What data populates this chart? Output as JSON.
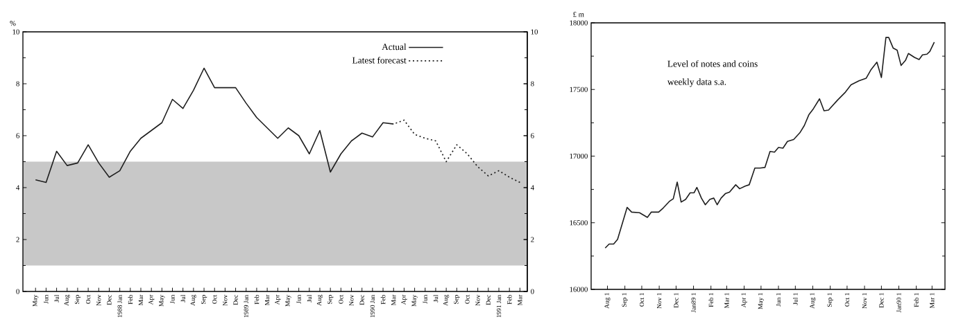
{
  "chart_data": [
    {
      "type": "line",
      "ylabel": "%",
      "categories": [
        "May",
        "Jun",
        "Jul",
        "Aug",
        "Sep",
        "Oct",
        "Nov",
        "Dec",
        "1988 Jan",
        "Feb",
        "Mar",
        "Apr",
        "May",
        "Jun",
        "Jul",
        "Aug",
        "Sep",
        "Oct",
        "Nov",
        "Dec",
        "1989 Jan",
        "Feb",
        "Mar",
        "Apr",
        "May",
        "Jun",
        "Jul",
        "Aug",
        "Sep",
        "Oct",
        "Nov",
        "Dec",
        "1990 Jan",
        "Feb",
        "Mar",
        "Apr",
        "May",
        "Jun",
        "Jul",
        "Aug",
        "Sep",
        "Oct",
        "Nov",
        "Dec",
        "1991 Jan",
        "Feb",
        "Mar"
      ],
      "series": [
        {
          "name": "Actual",
          "color": "#1e1e1e",
          "line_style": "solid",
          "values": [
            4.3,
            4.2,
            5.4,
            4.85,
            4.95,
            5.65,
            4.95,
            4.4,
            4.65,
            5.4,
            5.9,
            6.2,
            6.5,
            7.4,
            7.05,
            7.75,
            8.6,
            7.85,
            7.85,
            7.85,
            7.25,
            6.7,
            6.3,
            5.9,
            6.3,
            6.0,
            5.3,
            6.2,
            4.6,
            5.3,
            5.8,
            6.1,
            5.95,
            6.5,
            6.45,
            null,
            null,
            null,
            null,
            null,
            null,
            null,
            null,
            null,
            null,
            null,
            null
          ]
        },
        {
          "name": "Latest forecast",
          "color": "#1e1e1e",
          "line_style": "dotted",
          "values": [
            null,
            null,
            null,
            null,
            null,
            null,
            null,
            null,
            null,
            null,
            null,
            null,
            null,
            null,
            null,
            null,
            null,
            null,
            null,
            null,
            null,
            null,
            null,
            null,
            null,
            null,
            null,
            null,
            null,
            null,
            null,
            null,
            null,
            null,
            6.45,
            6.6,
            6.05,
            5.9,
            5.8,
            5.0,
            5.65,
            5.3,
            4.8,
            4.45,
            4.65,
            4.4,
            4.2
          ]
        }
      ],
      "ylim": [
        0,
        10
      ],
      "yticks": [
        0,
        2,
        4,
        6,
        8,
        10
      ],
      "y2lim": [
        0,
        10
      ],
      "y2ticks": [
        0,
        2,
        4,
        6,
        8,
        10
      ],
      "bands": [
        {
          "axis": "y",
          "from": 1,
          "to": 5,
          "color": "#c8c8c8"
        }
      ],
      "legend": "top right"
    },
    {
      "type": "line",
      "ylabel": "£ m",
      "x": [
        "1988-07-28",
        "1988-08-04",
        "1988-08-12",
        "1988-08-19",
        "1988-09-05",
        "1988-09-13",
        "1988-09-27",
        "1988-10-11",
        "1988-10-18",
        "1988-10-31",
        "1988-11-08",
        "1988-11-19",
        "1988-11-26",
        "1988-12-03",
        "1988-12-10",
        "1988-12-18",
        "1988-12-26",
        "1989-01-02",
        "1989-01-07",
        "1989-01-15",
        "1989-01-22",
        "1989-01-30",
        "1989-02-06",
        "1989-02-12",
        "1989-02-19",
        "1989-02-27",
        "1989-03-06",
        "1989-03-17",
        "1989-03-24",
        "1989-04-03",
        "1989-04-10",
        "1989-04-20",
        "1989-04-29",
        "1989-05-08",
        "1989-05-17",
        "1989-05-25",
        "1989-06-01",
        "1989-06-09",
        "1989-06-17",
        "1989-06-28",
        "1989-07-09",
        "1989-07-17",
        "1989-07-25",
        "1989-08-02",
        "1989-08-13",
        "1989-08-21",
        "1989-08-29",
        "1989-09-14",
        "1989-09-28",
        "1989-10-08",
        "1989-10-22",
        "1989-11-04",
        "1989-11-12",
        "1989-11-23",
        "1989-12-01",
        "1989-12-09",
        "1989-12-14",
        "1989-12-22",
        "1989-12-29",
        "1990-01-05",
        "1990-01-13",
        "1990-01-18",
        "1990-01-29",
        "1990-02-06",
        "1990-02-12",
        "1990-02-20",
        "1990-02-25",
        "1990-03-05"
      ],
      "values": [
        16310,
        16340,
        16340,
        16375,
        16615,
        16580,
        16575,
        16540,
        16580,
        16580,
        16610,
        16660,
        16680,
        16805,
        16655,
        16675,
        16725,
        16725,
        16765,
        16685,
        16635,
        16675,
        16685,
        16635,
        16685,
        16720,
        16730,
        16785,
        16755,
        16775,
        16785,
        16910,
        16910,
        16915,
        17035,
        17030,
        17065,
        17060,
        17110,
        17125,
        17175,
        17230,
        17310,
        17355,
        17430,
        17340,
        17345,
        17420,
        17480,
        17535,
        17565,
        17585,
        17645,
        17705,
        17590,
        17890,
        17890,
        17810,
        17795,
        17680,
        17720,
        17770,
        17740,
        17725,
        17760,
        17765,
        17785,
        17855
      ],
      "color": "#1e1e1e",
      "xlim": [
        "1988-07-03",
        "1990-03-24"
      ],
      "xticks": [
        {
          "value": "1988-08-01",
          "label": "Aug 1"
        },
        {
          "value": "1988-09-01",
          "label": "Sep 1"
        },
        {
          "value": "1988-10-01",
          "label": "Oct 1"
        },
        {
          "value": "1988-11-01",
          "label": "Nov 1"
        },
        {
          "value": "1988-12-01",
          "label": "Dec 1"
        },
        {
          "value": "1989-01-01",
          "label": "Jan89 1"
        },
        {
          "value": "1989-02-01",
          "label": "Feb 1"
        },
        {
          "value": "1989-03-01",
          "label": "Mar 1"
        },
        {
          "value": "1989-04-01",
          "label": "Apr 1"
        },
        {
          "value": "1989-05-01",
          "label": "May 1"
        },
        {
          "value": "1989-06-01",
          "label": "Jun 1"
        },
        {
          "value": "1989-07-01",
          "label": "Jul 1"
        },
        {
          "value": "1989-08-01",
          "label": "Aug 1"
        },
        {
          "value": "1989-09-01",
          "label": "Sep 1"
        },
        {
          "value": "1989-10-01",
          "label": "Oct 1"
        },
        {
          "value": "1989-11-01",
          "label": "Nov 1"
        },
        {
          "value": "1989-12-01",
          "label": "Dec 1"
        },
        {
          "value": "1990-01-01",
          "label": "Jan90 1"
        },
        {
          "value": "1990-02-01",
          "label": "Feb 1"
        },
        {
          "value": "1990-03-01",
          "label": "Mar 1"
        }
      ],
      "ylim": [
        16000,
        18000
      ],
      "yticks": [
        16000,
        16500,
        17000,
        17500,
        18000
      ],
      "annotations": [
        "Level of notes and coins",
        "weekly data s.a."
      ]
    }
  ]
}
